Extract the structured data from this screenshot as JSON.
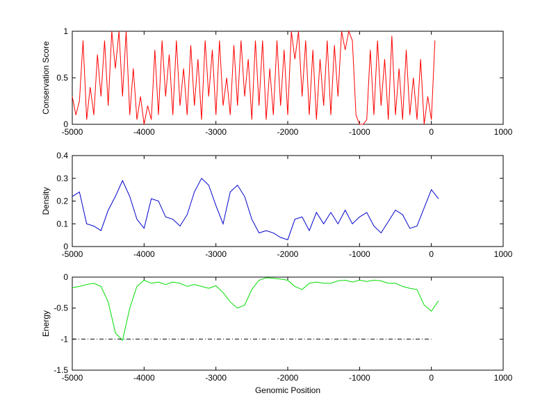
{
  "chart_data": [
    {
      "type": "line",
      "ylabel": "Conservation Score",
      "x": [
        -5000,
        -4950,
        -4900,
        -4850,
        -4800,
        -4750,
        -4700,
        -4650,
        -4600,
        -4550,
        -4500,
        -4450,
        -4400,
        -4350,
        -4300,
        -4250,
        -4200,
        -4150,
        -4100,
        -4050,
        -4000,
        -3950,
        -3900,
        -3850,
        -3800,
        -3750,
        -3700,
        -3650,
        -3600,
        -3550,
        -3500,
        -3450,
        -3400,
        -3350,
        -3300,
        -3250,
        -3200,
        -3150,
        -3100,
        -3050,
        -3000,
        -2950,
        -2900,
        -2850,
        -2800,
        -2750,
        -2700,
        -2650,
        -2600,
        -2550,
        -2500,
        -2450,
        -2400,
        -2350,
        -2300,
        -2250,
        -2200,
        -2150,
        -2100,
        -2050,
        -2000,
        -1950,
        -1900,
        -1850,
        -1800,
        -1750,
        -1700,
        -1650,
        -1600,
        -1550,
        -1500,
        -1450,
        -1400,
        -1350,
        -1300,
        -1250,
        -1200,
        -1150,
        -1100,
        -1050,
        -1000,
        -950,
        -900,
        -850,
        -800,
        -750,
        -700,
        -650,
        -600,
        -550,
        -500,
        -450,
        -400,
        -350,
        -300,
        -250,
        -200,
        -150,
        -100,
        -50,
        0,
        50
      ],
      "series": [
        {
          "color": "#ff0000",
          "values": [
            0.3,
            0.1,
            0.25,
            0.9,
            0.05,
            0.4,
            0.1,
            0.75,
            0.3,
            0.9,
            0.2,
            1,
            0.6,
            1,
            0.3,
            1,
            0.1,
            0.6,
            0.05,
            0.3,
            0,
            0.2,
            0.05,
            0.8,
            0.1,
            0.9,
            0.3,
            0.75,
            0.1,
            0.9,
            0.2,
            0.6,
            0.1,
            0.85,
            0.2,
            0.7,
            0.05,
            0.9,
            0.3,
            0.8,
            0.1,
            0.9,
            0.2,
            0.5,
            0.1,
            0.85,
            0.2,
            0.9,
            0.3,
            0.7,
            0.05,
            0.9,
            0.2,
            0.9,
            0.05,
            0.6,
            0.1,
            0.9,
            0.2,
            0.8,
            0.1,
            1,
            0.7,
            1,
            0.3,
            0.9,
            0.1,
            0.8,
            0.05,
            0.7,
            0.2,
            0.9,
            0.1,
            0.85,
            0.3,
            1,
            0.8,
            1,
            0.9,
            0.1,
            0,
            0,
            0.05,
            0.8,
            0.1,
            0.9,
            0.2,
            0.7,
            0.05,
            0.95,
            0.1,
            0.6,
            0.05,
            0.8,
            0.1,
            0.5,
            0.05,
            0.7,
            0,
            0.3,
            0.05,
            0.9
          ]
        }
      ],
      "xlim": [
        -5000,
        1000
      ],
      "xticks": [
        -5000,
        -4000,
        -3000,
        -2000,
        -1000,
        0,
        1000
      ],
      "ylim": [
        0,
        1
      ],
      "yticks": [
        0,
        0.5,
        1
      ]
    },
    {
      "type": "line",
      "ylabel": "Density",
      "x": [
        -5000,
        -4900,
        -4800,
        -4700,
        -4600,
        -4500,
        -4400,
        -4300,
        -4200,
        -4100,
        -4000,
        -3900,
        -3800,
        -3700,
        -3600,
        -3500,
        -3400,
        -3300,
        -3200,
        -3100,
        -3000,
        -2900,
        -2800,
        -2700,
        -2600,
        -2500,
        -2400,
        -2300,
        -2200,
        -2100,
        -2000,
        -1900,
        -1800,
        -1700,
        -1600,
        -1500,
        -1400,
        -1300,
        -1200,
        -1100,
        -1000,
        -900,
        -800,
        -700,
        -600,
        -500,
        -400,
        -300,
        -200,
        -100,
        0,
        100
      ],
      "series": [
        {
          "color": "#0000cc",
          "values": [
            0.22,
            0.24,
            0.1,
            0.09,
            0.07,
            0.16,
            0.22,
            0.29,
            0.22,
            0.12,
            0.08,
            0.21,
            0.2,
            0.13,
            0.12,
            0.09,
            0.14,
            0.24,
            0.3,
            0.27,
            0.18,
            0.1,
            0.24,
            0.27,
            0.22,
            0.12,
            0.06,
            0.07,
            0.06,
            0.04,
            0.03,
            0.12,
            0.13,
            0.07,
            0.15,
            0.1,
            0.15,
            0.1,
            0.16,
            0.1,
            0.13,
            0.15,
            0.09,
            0.06,
            0.11,
            0.16,
            0.14,
            0.08,
            0.09,
            0.17,
            0.25,
            0.21
          ]
        }
      ],
      "xlim": [
        -5000,
        1000
      ],
      "xticks": [
        -5000,
        -4000,
        -3000,
        -2000,
        -1000,
        0,
        1000
      ],
      "ylim": [
        0,
        0.4
      ],
      "yticks": [
        0,
        0.1,
        0.2,
        0.3,
        0.4
      ]
    },
    {
      "type": "line",
      "ylabel": "Energy",
      "xlabel": "Genomic Position",
      "x": [
        -5000,
        -4900,
        -4800,
        -4700,
        -4600,
        -4500,
        -4400,
        -4300,
        -4200,
        -4100,
        -4000,
        -3900,
        -3800,
        -3700,
        -3600,
        -3500,
        -3400,
        -3300,
        -3200,
        -3100,
        -3000,
        -2900,
        -2800,
        -2700,
        -2600,
        -2500,
        -2400,
        -2300,
        -2200,
        -2100,
        -2000,
        -1900,
        -1800,
        -1700,
        -1600,
        -1500,
        -1400,
        -1300,
        -1200,
        -1100,
        -1000,
        -900,
        -800,
        -700,
        -600,
        -500,
        -400,
        -300,
        -200,
        -100,
        0,
        100
      ],
      "series": [
        {
          "color": "#00dd00",
          "values": [
            -0.17,
            -0.15,
            -0.12,
            -0.1,
            -0.15,
            -0.4,
            -0.9,
            -1.02,
            -0.5,
            -0.15,
            -0.05,
            -0.1,
            -0.08,
            -0.12,
            -0.08,
            -0.1,
            -0.15,
            -0.12,
            -0.15,
            -0.18,
            -0.14,
            -0.25,
            -0.4,
            -0.5,
            -0.45,
            -0.2,
            -0.05,
            -0.01,
            -0.02,
            -0.03,
            -0.05,
            -0.15,
            -0.2,
            -0.1,
            -0.08,
            -0.1,
            -0.1,
            -0.06,
            -0.05,
            -0.08,
            -0.05,
            -0.07,
            -0.05,
            -0.06,
            -0.1,
            -0.1,
            -0.15,
            -0.18,
            -0.2,
            -0.45,
            -0.55,
            -0.38
          ]
        }
      ],
      "threshold": {
        "x": [
          -5000,
          0
        ],
        "values": [
          -1,
          -1
        ],
        "color": "#000000",
        "linestyle": "dashdot"
      },
      "xlim": [
        -5000,
        1000
      ],
      "xticks": [
        -5000,
        -4000,
        -3000,
        -2000,
        -1000,
        0,
        1000
      ],
      "ylim": [
        -1.5,
        0
      ],
      "yticks": [
        -1.5,
        -1,
        -0.5,
        0
      ]
    }
  ]
}
